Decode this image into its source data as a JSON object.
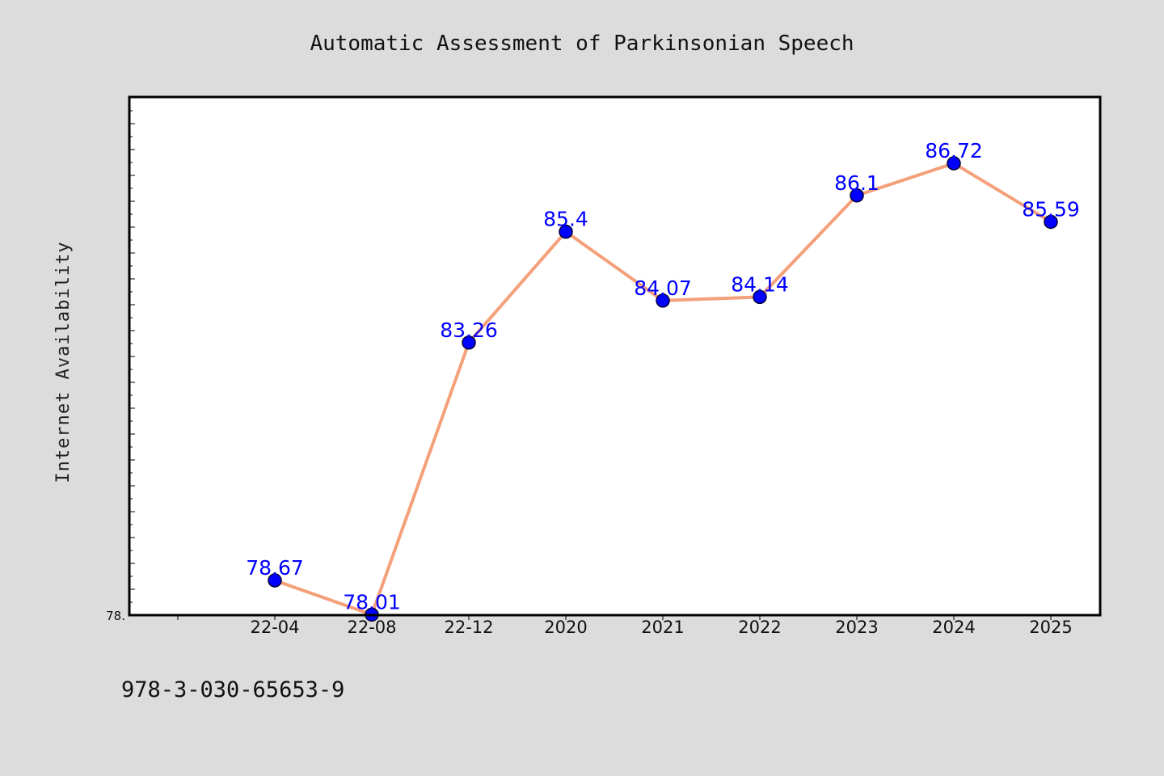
{
  "chart_data": {
    "type": "line",
    "title": "Automatic Assessment of Parkinsonian Speech",
    "xlabel": "",
    "ylabel": "Internet Availability",
    "categories": [
      "22-04",
      "22-08",
      "22-12",
      "2020",
      "2021",
      "2022",
      "2023",
      "2024",
      "2025"
    ],
    "series": [
      {
        "values": [
          78.67,
          78.01,
          83.26,
          85.4,
          84.07,
          84.14,
          86.1,
          86.72,
          85.59
        ],
        "data_labels": [
          "78.67",
          "78.01",
          "83.26",
          "85.4",
          "84.07",
          "84.14",
          "86.1",
          "86.72",
          "85.59"
        ]
      }
    ],
    "ylim": [
      78.0,
      88.0
    ],
    "y_tick_label": "78.",
    "grid": false,
    "legend": "none",
    "colors": {
      "line": "#f4a07a",
      "marker": "#0000ff",
      "marker_edge": "#000033",
      "data_label": "#0000ff",
      "background": "#dcdcdc",
      "plot_background": "#ffffff"
    }
  },
  "footnote": "978-3-030-65653-9"
}
